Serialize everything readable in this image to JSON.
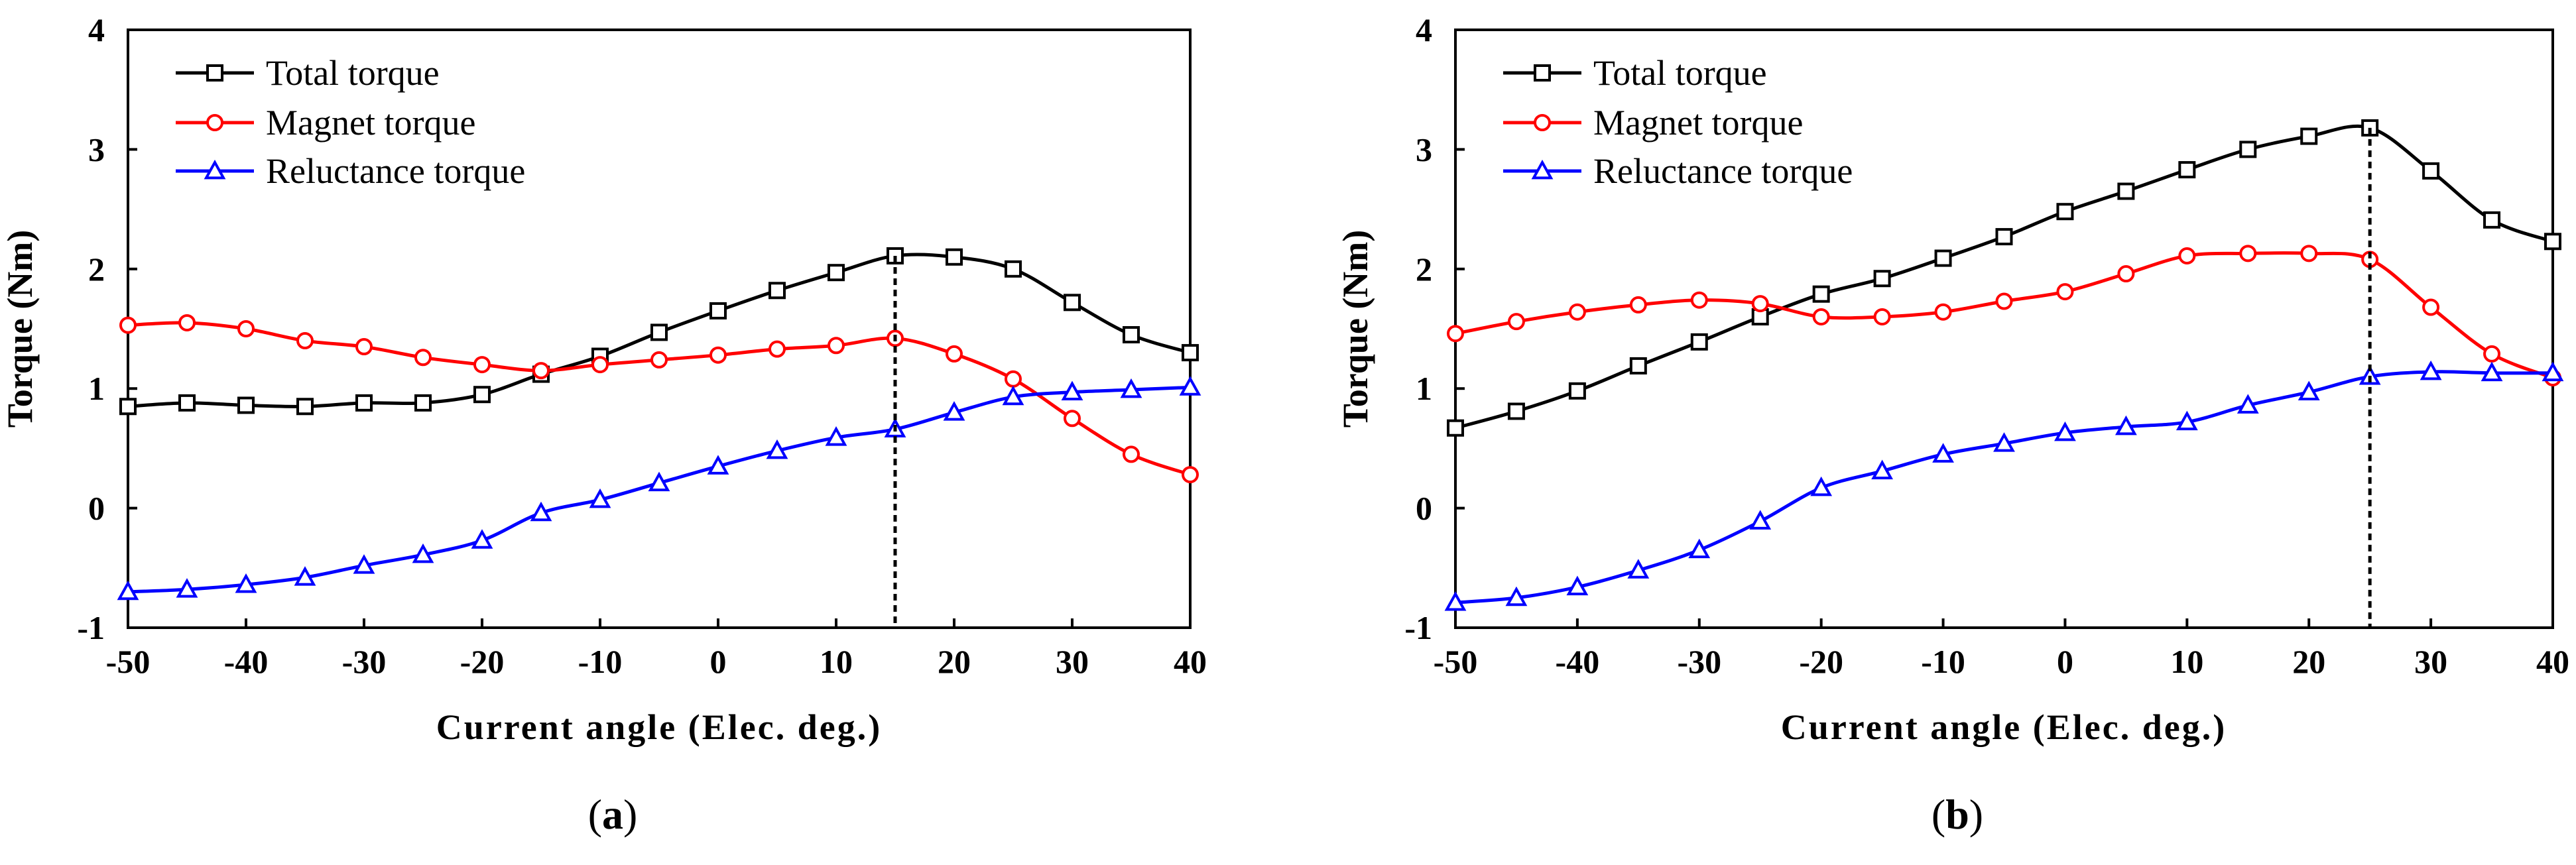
{
  "figure": {
    "panels": [
      "a",
      "b"
    ]
  },
  "chart_data": [
    {
      "type": "line",
      "panel_label": "a",
      "panel_label_open": "(",
      "panel_label_close": ")",
      "xlabel": "Current angle (Elec. deg.)",
      "ylabel": "Torque (Nm)",
      "xlim": [
        -50,
        40
      ],
      "ylim": [
        -1,
        4
      ],
      "xticks": [
        -50,
        -40,
        -30,
        -20,
        -10,
        0,
        10,
        20,
        30,
        40
      ],
      "yticks": [
        -1,
        0,
        1,
        2,
        3,
        4
      ],
      "x": [
        -50,
        -45,
        -40,
        -35,
        -30,
        -25,
        -20,
        -15,
        -10,
        -5,
        0,
        5,
        10,
        15,
        20,
        25,
        30,
        35,
        40
      ],
      "series": [
        {
          "name": "Total torque",
          "color": "#000000",
          "marker": "square",
          "values": [
            0.85,
            0.88,
            0.86,
            0.85,
            0.88,
            0.88,
            0.95,
            1.12,
            1.27,
            1.47,
            1.65,
            1.82,
            1.97,
            2.11,
            2.1,
            2.0,
            1.72,
            1.45,
            1.3
          ]
        },
        {
          "name": "Magnet torque",
          "color": "#ff0000",
          "marker": "circle",
          "values": [
            1.53,
            1.55,
            1.5,
            1.4,
            1.35,
            1.26,
            1.2,
            1.15,
            1.2,
            1.24,
            1.28,
            1.33,
            1.36,
            1.42,
            1.29,
            1.08,
            0.75,
            0.45,
            0.28
          ]
        },
        {
          "name": "Reluctance torque",
          "color": "#0000ff",
          "marker": "triangle",
          "values": [
            -0.7,
            -0.68,
            -0.64,
            -0.58,
            -0.48,
            -0.39,
            -0.27,
            -0.04,
            0.07,
            0.21,
            0.35,
            0.48,
            0.59,
            0.66,
            0.8,
            0.93,
            0.97,
            0.99,
            1.01
          ]
        }
      ],
      "marker_line": {
        "x": 15,
        "y": 2.11
      }
    },
    {
      "type": "line",
      "panel_label": "b",
      "panel_label_open": "(",
      "panel_label_close": ")",
      "xlabel": "Current angle (Elec. deg.)",
      "ylabel": "Torque (Nm)",
      "xlim": [
        -50,
        40
      ],
      "ylim": [
        -1,
        4
      ],
      "xticks": [
        -50,
        -40,
        -30,
        -20,
        -10,
        0,
        10,
        20,
        30,
        40
      ],
      "yticks": [
        -1,
        0,
        1,
        2,
        3,
        4
      ],
      "x": [
        -50,
        -45,
        -40,
        -35,
        -30,
        -25,
        -20,
        -15,
        -10,
        -5,
        0,
        5,
        10,
        15,
        20,
        25,
        30,
        35,
        40
      ],
      "series": [
        {
          "name": "Total torque",
          "color": "#000000",
          "marker": "square",
          "values": [
            0.67,
            0.81,
            0.98,
            1.19,
            1.39,
            1.6,
            1.79,
            1.92,
            2.09,
            2.27,
            2.48,
            2.65,
            2.83,
            3.0,
            3.11,
            3.18,
            2.82,
            2.41,
            2.23
          ]
        },
        {
          "name": "Magnet torque",
          "color": "#ff0000",
          "marker": "circle",
          "values": [
            1.46,
            1.56,
            1.64,
            1.7,
            1.74,
            1.71,
            1.6,
            1.6,
            1.64,
            1.73,
            1.81,
            1.96,
            2.11,
            2.13,
            2.13,
            2.08,
            1.68,
            1.29,
            1.09
          ]
        },
        {
          "name": "Reluctance torque",
          "color": "#0000ff",
          "marker": "triangle",
          "values": [
            -0.79,
            -0.75,
            -0.66,
            -0.52,
            -0.35,
            -0.11,
            0.17,
            0.31,
            0.45,
            0.54,
            0.63,
            0.68,
            0.72,
            0.86,
            0.97,
            1.1,
            1.14,
            1.13,
            1.13
          ]
        }
      ],
      "marker_line": {
        "x": 25,
        "y": 3.18
      }
    }
  ]
}
